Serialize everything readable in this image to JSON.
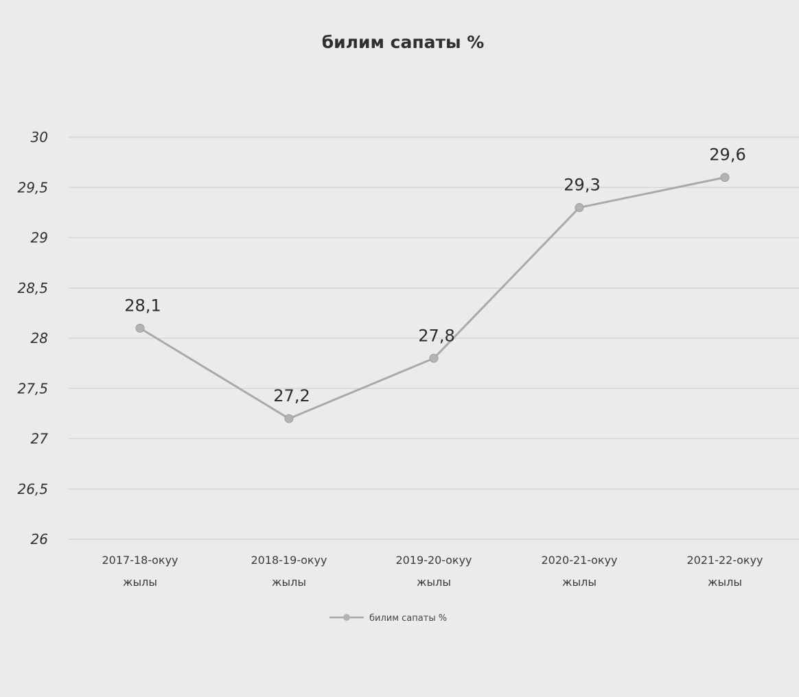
{
  "chart_data": {
    "type": "line",
    "title": "билим сапаты %",
    "categories": [
      [
        "2017-18-окуу",
        "жылы"
      ],
      [
        "2018-19-окуу",
        "жылы"
      ],
      [
        "2019-20-окуу",
        "жылы"
      ],
      [
        "2020-21-окуу",
        "жылы"
      ],
      [
        "2021-22-окуу",
        "жылы"
      ]
    ],
    "series": [
      {
        "name": "билим сапаты %",
        "values": [
          28.1,
          27.2,
          27.8,
          29.3,
          29.6
        ],
        "data_labels": [
          "28,1",
          "27,2",
          "27,8",
          "29,3",
          "29,6"
        ],
        "color": "#a9a9a9"
      }
    ],
    "y_ticks": [
      "30",
      "29,5",
      "29",
      "28,5",
      "28",
      "27,5",
      "27",
      "26,5",
      "26"
    ],
    "ylim": [
      26,
      30
    ],
    "grid": true,
    "legend_position": "bottom"
  }
}
